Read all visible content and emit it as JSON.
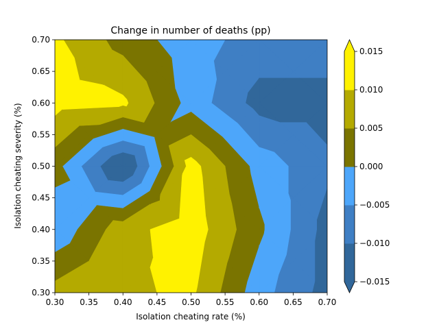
{
  "chart_data": {
    "type": "contour",
    "title": "Change in number of deaths (pp)",
    "xlabel": "Isolation cheating rate (%)",
    "ylabel": "Isolation cheating severity (%)",
    "xlim": [
      0.3,
      0.7
    ],
    "ylim": [
      0.3,
      0.7
    ],
    "x_ticks": [
      "0.30",
      "0.35",
      "0.40",
      "0.45",
      "0.50",
      "0.55",
      "0.60",
      "0.65",
      "0.70"
    ],
    "y_ticks": [
      "0.30",
      "0.35",
      "0.40",
      "0.45",
      "0.50",
      "0.55",
      "0.60",
      "0.65",
      "0.70"
    ],
    "x": [
      0.3,
      0.4,
      0.5,
      0.6,
      0.7
    ],
    "y": [
      0.3,
      0.4,
      0.5,
      0.6,
      0.7
    ],
    "z": [
      [
        0.007,
        0.009,
        0.011,
        -0.003,
        -0.012
      ],
      [
        -0.004,
        0.008,
        0.013,
        0.001,
        -0.012
      ],
      [
        0.002,
        -0.016,
        0.012,
        -0.002,
        -0.009
      ],
      [
        0.012,
        0.011,
        -0.002,
        -0.012,
        -0.012
      ],
      [
        0.011,
        0.003,
        -0.003,
        -0.007,
        -0.007
      ]
    ],
    "levels": [
      -0.015,
      -0.01,
      -0.005,
      0.0,
      0.005,
      0.01,
      0.015
    ],
    "colors": [
      "#31679a",
      "#3f7fc4",
      "#4da6fa",
      "#7a7400",
      "#b4aa00",
      "#fff200"
    ],
    "extend": "both",
    "colorbar": {
      "tick_values": [
        0.015,
        0.01,
        0.005,
        0.0,
        -0.005,
        -0.01,
        -0.015
      ],
      "tick_labels": [
        "0.015",
        "0.010",
        "0.005",
        "0.000",
        "−0.005",
        "−0.010",
        "−0.015"
      ]
    },
    "grid": false,
    "legend": "none"
  }
}
